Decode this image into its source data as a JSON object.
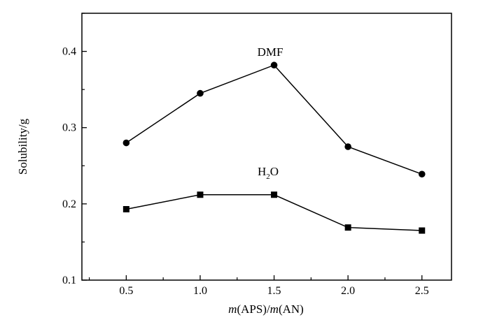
{
  "chart_data": {
    "type": "line",
    "xlabel_parts": {
      "italic_1": "m",
      "mid": "(APS)/",
      "italic_2": "m",
      "tail": "(AN)"
    },
    "ylabel": "Solubility/g",
    "xlim": [
      0.2,
      2.7
    ],
    "ylim": [
      0.1,
      0.45
    ],
    "x_ticks": [
      0.5,
      1.0,
      1.5,
      2.0,
      2.5
    ],
    "x_tick_labels": [
      "0.5",
      "1.0",
      "1.5",
      "2.0",
      "2.5"
    ],
    "y_ticks": [
      0.1,
      0.2,
      0.3,
      0.4
    ],
    "y_tick_labels": [
      "0.1",
      "0.2",
      "0.3",
      "0.4"
    ],
    "grid": false,
    "x": [
      0.5,
      1.0,
      1.5,
      2.0,
      2.5
    ],
    "series": [
      {
        "name": "DMF",
        "marker": "circle",
        "values": [
          0.28,
          0.345,
          0.382,
          0.275,
          0.239
        ]
      },
      {
        "name_parts": {
          "base": "H",
          "sub": "2",
          "tail": "O"
        },
        "marker": "square",
        "values": [
          0.193,
          0.212,
          0.212,
          0.169,
          0.165
        ]
      }
    ]
  }
}
